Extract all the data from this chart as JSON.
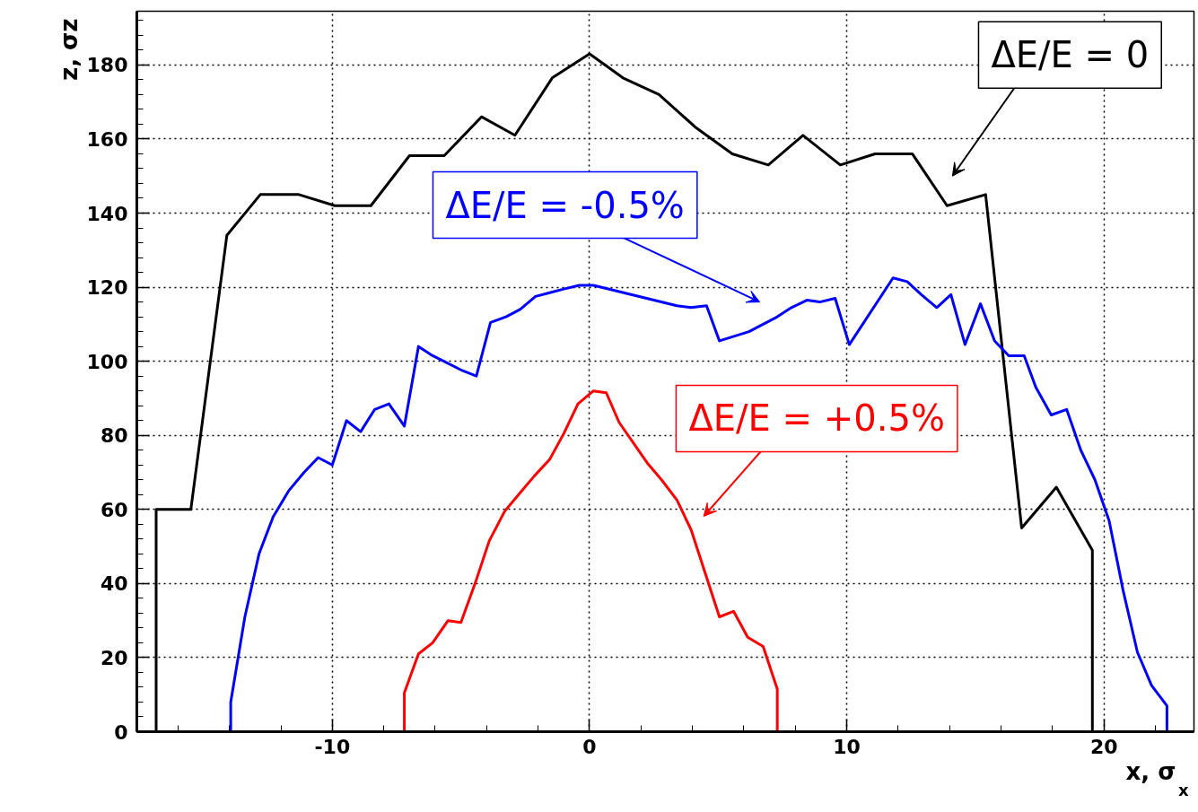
{
  "chart_data": {
    "type": "line",
    "xlabel": "x, σ$_{x}$",
    "ylabel": "z, σz",
    "xlim": [
      -17.6,
      23.5
    ],
    "ylim": [
      0,
      194.5
    ],
    "xticks": [
      -10,
      0,
      10,
      20
    ],
    "yticks": [
      0,
      20,
      40,
      60,
      80,
      100,
      120,
      140,
      160,
      180
    ],
    "grid": true,
    "line_style": "solid",
    "marker": "none",
    "series": [
      {
        "color": "#000000",
        "x": [
          -16.85,
          -16.85,
          -15.5,
          -14.1,
          -12.8,
          -11.3,
          -9.9,
          -8.5,
          -7.0,
          -5.65,
          -4.2,
          -2.9,
          -1.45,
          0,
          1.3,
          2.7,
          4.15,
          5.55,
          6.95,
          8.3,
          9.75,
          11.1,
          12.55,
          13.9,
          15.4,
          16.8,
          18.15,
          19.55,
          19.55
        ],
        "values": [
          0,
          60,
          60,
          134,
          145,
          145,
          142,
          142,
          155.5,
          155.5,
          166,
          161,
          176.5,
          183,
          176.5,
          172,
          163,
          156,
          153,
          161,
          153,
          156,
          156,
          142,
          145,
          55,
          66,
          49,
          0
        ]
      },
      {
        "color": "#0000ff",
        "x": [
          -13.95,
          -13.95,
          -13.4,
          -12.85,
          -12.3,
          -11.7,
          -11.1,
          -10.55,
          -10.0,
          -9.45,
          -8.9,
          -8.35,
          -7.8,
          -7.2,
          -6.65,
          -6.1,
          -4.95,
          -4.4,
          -3.85,
          -3.25,
          -2.7,
          -2.1,
          -1.55,
          -1.0,
          -0.4,
          0.15,
          3.4,
          3.95,
          4.55,
          5.05,
          6.2,
          7.3,
          7.85,
          8.45,
          8.95,
          9.55,
          10.1,
          11.8,
          12.35,
          12.9,
          13.5,
          14.05,
          14.6,
          15.2,
          15.75,
          16.3,
          16.9,
          17.35,
          17.95,
          18.55,
          19.1,
          19.65,
          20.2,
          20.75,
          21.3,
          21.85,
          22.45,
          22.45
        ],
        "values": [
          0,
          8,
          31,
          48,
          58,
          65,
          70,
          74,
          72,
          84,
          81,
          87,
          88.5,
          82.5,
          104,
          101.5,
          97.5,
          96,
          110.5,
          112,
          114,
          117.5,
          118.5,
          119.5,
          120.5,
          120.5,
          115,
          114.5,
          115,
          105.5,
          108,
          112,
          114.5,
          116.5,
          116,
          117,
          104.5,
          122.5,
          121.5,
          118,
          114.5,
          118,
          104.5,
          115.5,
          105.5,
          101.5,
          101.5,
          93,
          85.5,
          87,
          76,
          68,
          57,
          38,
          21.5,
          12.5,
          7,
          0
        ]
      },
      {
        "color": "#ff0000",
        "x": [
          -7.2,
          -7.2,
          -6.65,
          -6.1,
          -5.5,
          -5.0,
          -4.45,
          -3.9,
          -3.3,
          -2.7,
          -2.15,
          -1.55,
          -1.0,
          -0.45,
          0.15,
          0.65,
          1.15,
          2.25,
          2.8,
          3.4,
          3.95,
          5.05,
          5.6,
          6.15,
          6.75,
          7.3,
          7.3
        ],
        "values": [
          0,
          10.5,
          21,
          24,
          30,
          29.5,
          40,
          51.5,
          59.5,
          64.5,
          69,
          73.5,
          80.5,
          88.5,
          92,
          91.5,
          83.5,
          72.5,
          68,
          62.5,
          54.5,
          31,
          32.5,
          25.5,
          23,
          11.5,
          0
        ]
      }
    ],
    "annotations": [
      "ΔE/E = 0",
      "ΔE/E = -0.5%",
      "ΔE/E = +0.5%"
    ]
  }
}
